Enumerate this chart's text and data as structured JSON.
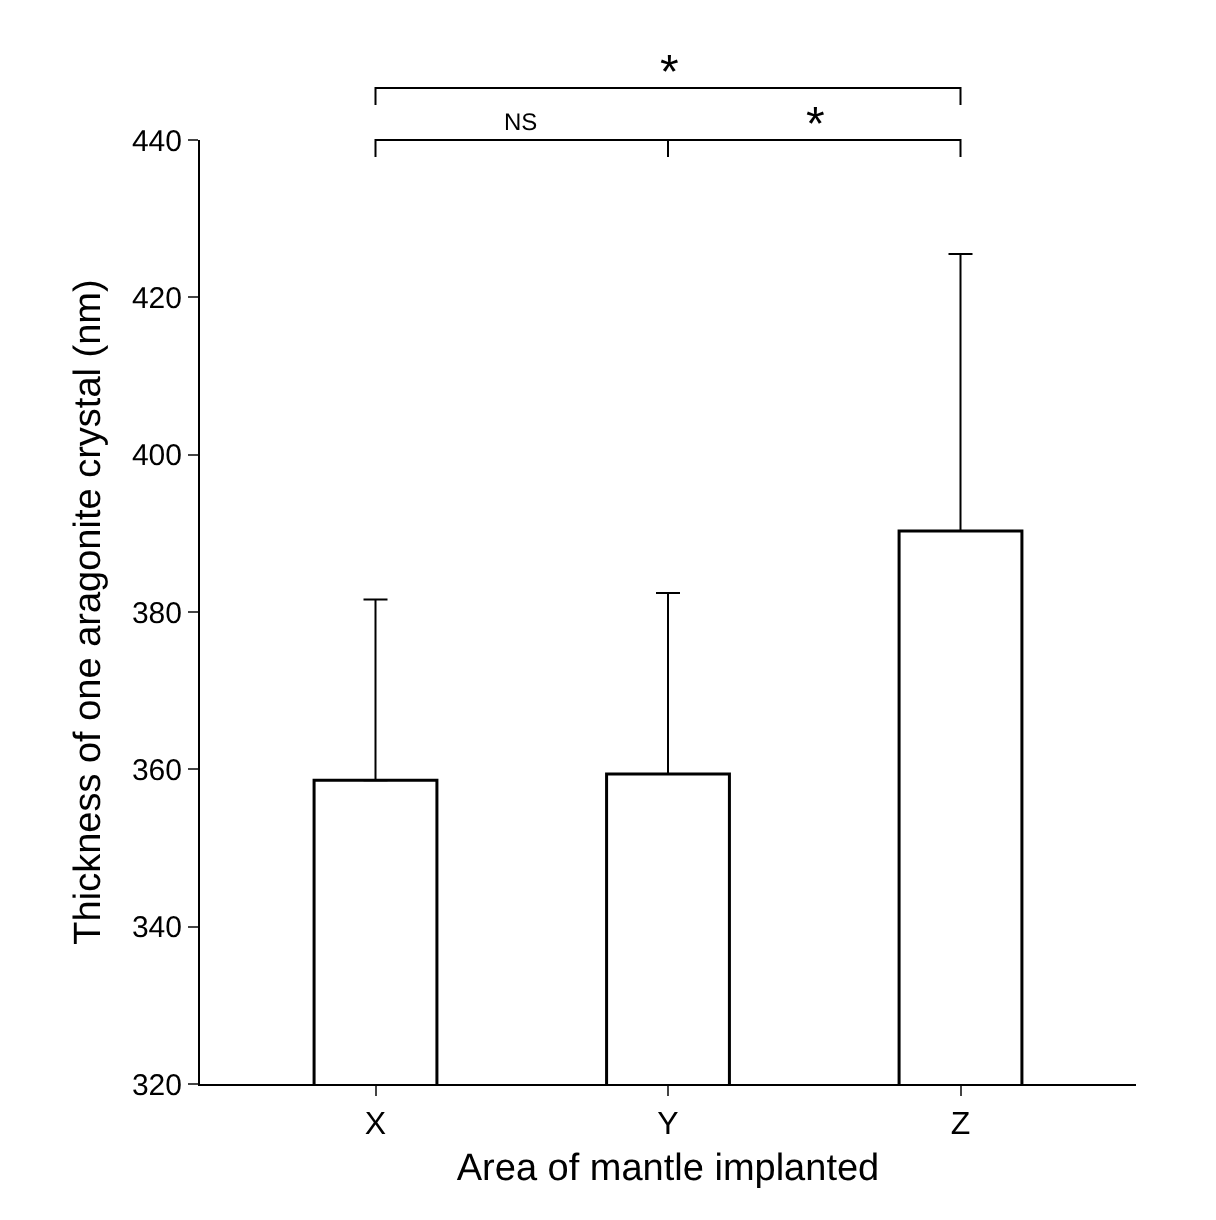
{
  "chart_data": {
    "type": "bar",
    "xlabel": "Area of mantle implanted",
    "ylabel": "Thickness of one aragonite crystal (nm)",
    "categories": [
      "X",
      "Y",
      "Z"
    ],
    "values": [
      358.6,
      359.4,
      390.3
    ],
    "errors": [
      [
        358.6,
        381.6
      ],
      [
        359.4,
        382.4
      ],
      [
        390.3,
        425.5
      ]
    ],
    "color": "#ffffff",
    "ylim": [
      320,
      440
    ],
    "yticks": [
      320,
      340,
      360,
      380,
      400,
      420,
      440
    ],
    "grid": false,
    "annotations": [
      "*",
      "NS",
      "*"
    ]
  }
}
